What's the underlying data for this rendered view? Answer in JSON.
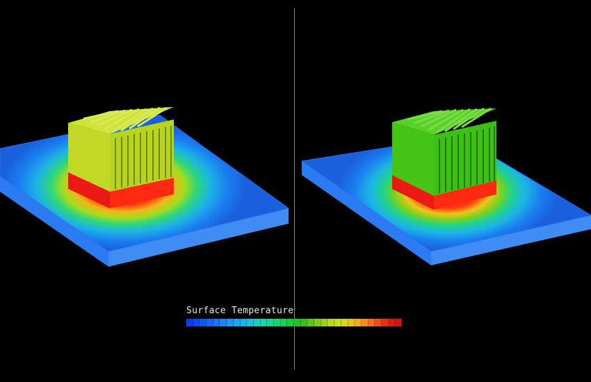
{
  "legend": {
    "title": "Surface Temperature",
    "colors": [
      "#0b3de8",
      "#0d4bec",
      "#1059ef",
      "#1467f1",
      "#1876f3",
      "#1c85f4",
      "#1e94f3",
      "#1fa3ee",
      "#1fb2e6",
      "#1fbfd8",
      "#1dcbc4",
      "#18d3ac",
      "#14d890",
      "#12d872",
      "#14d454",
      "#18cc36",
      "#26c31e",
      "#3fbf18",
      "#5ec51a",
      "#7ccc1b",
      "#98d31c",
      "#b3d91d",
      "#cadc1e",
      "#dcd51f",
      "#e8c41f",
      "#f0ac1e",
      "#f28f1c",
      "#ef6f1a",
      "#ea4f18",
      "#e23217",
      "#da1e16",
      "#d11414"
    ]
  },
  "colors": {
    "background": "#000000",
    "divider": "#8a8a8a",
    "plate": "#1a66e0",
    "hot": "#ef1e12",
    "fins_left": "#bada24",
    "fins_right": "#3dc418"
  }
}
